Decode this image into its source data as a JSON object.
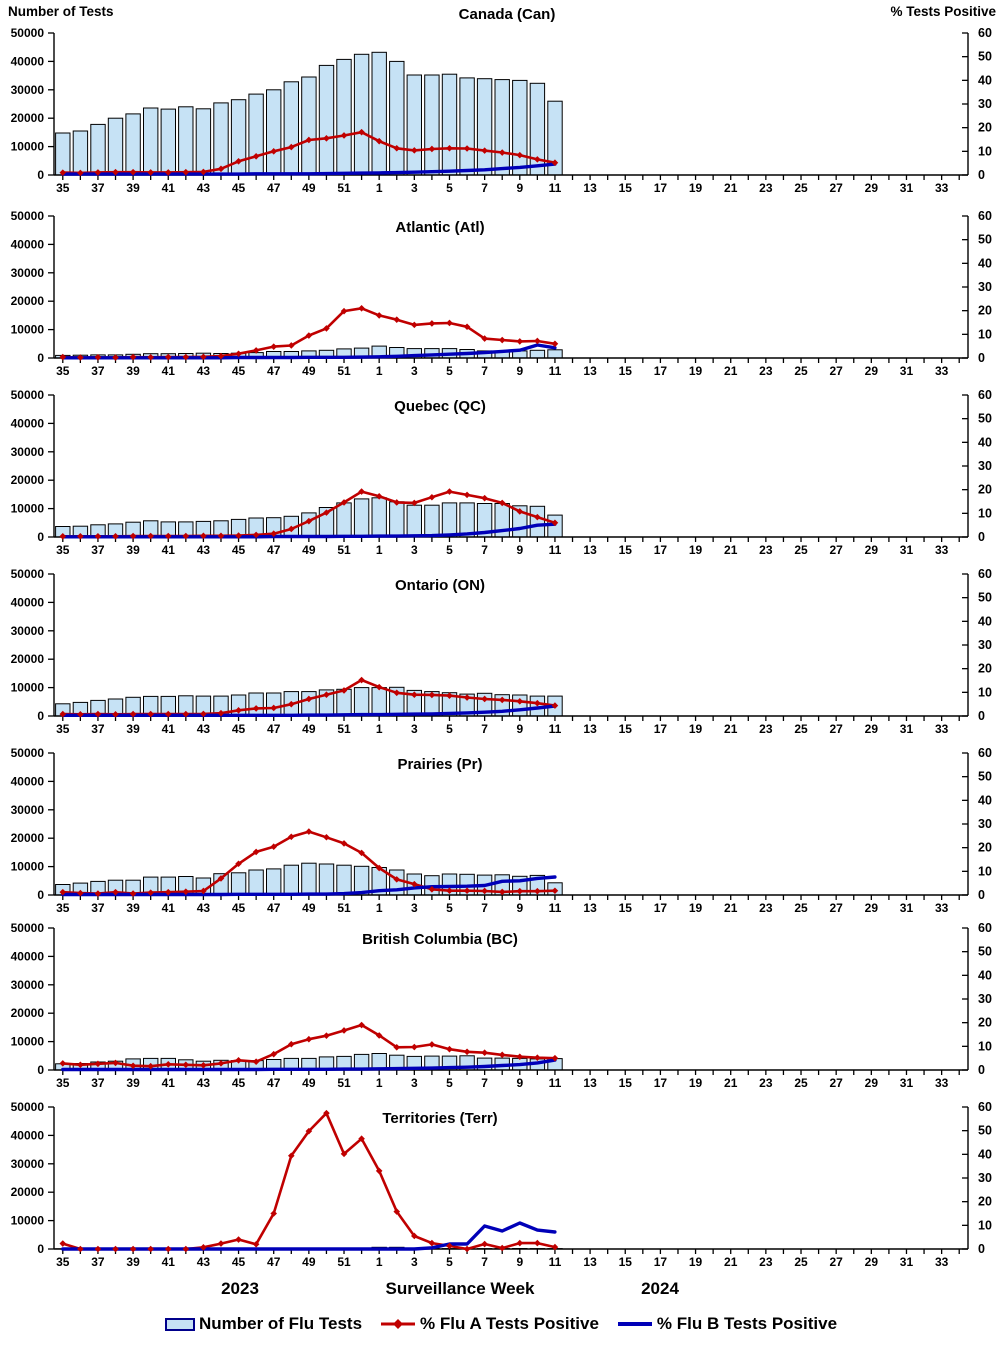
{
  "page": {
    "left_axis_label": "Number of Tests",
    "right_axis_label": "% Tests Positive",
    "x_axis": {
      "year_left": "2023",
      "title": "Surveillance Week",
      "year_right": "2024"
    },
    "legend": {
      "tests_label": "Number of Flu Tests",
      "flu_a_label": "% Flu A Tests Positive",
      "flu_b_label": "% Flu B Tests Positive"
    },
    "colors": {
      "bar_fill": "#C6E2F5",
      "bar_stroke": "#000000",
      "flu_a": "#C00000",
      "flu_b": "#0000B8",
      "axis": "#000000"
    }
  },
  "chart_data": {
    "type": "bar",
    "subtype": "combo-small-multiples",
    "x_axis_weeks": [
      "35",
      "36",
      "37",
      "38",
      "39",
      "40",
      "41",
      "42",
      "43",
      "44",
      "45",
      "46",
      "47",
      "48",
      "49",
      "50",
      "51",
      "52",
      "1",
      "2",
      "3",
      "4",
      "5",
      "6",
      "7",
      "8",
      "9",
      "10",
      "11",
      "12",
      "13",
      "14",
      "15",
      "16",
      "17",
      "18",
      "19",
      "20",
      "21",
      "22",
      "23",
      "24",
      "25",
      "26",
      "27",
      "28",
      "29",
      "30",
      "31",
      "32",
      "33",
      "34"
    ],
    "x_tick_label_every": 2,
    "data_weeks": [
      "35",
      "36",
      "37",
      "38",
      "39",
      "40",
      "41",
      "42",
      "43",
      "44",
      "45",
      "46",
      "47",
      "48",
      "49",
      "50",
      "51",
      "52",
      "1",
      "2",
      "3",
      "4",
      "5",
      "6",
      "7",
      "8",
      "9",
      "10",
      "11"
    ],
    "ylim_left": [
      0,
      50000
    ],
    "yticks_left": [
      0,
      10000,
      20000,
      30000,
      40000,
      50000
    ],
    "ylim_right": [
      0,
      60
    ],
    "yticks_right": [
      0,
      10,
      20,
      30,
      40,
      50,
      60
    ],
    "grid": false,
    "legend_position": "bottom",
    "panels": [
      {
        "title": "Canada (Can)",
        "region": "can",
        "bars": [
          14800,
          15500,
          17800,
          20000,
          21500,
          23600,
          23200,
          24000,
          23300,
          25400,
          26500,
          28500,
          30000,
          32800,
          34500,
          38600,
          40700,
          42500,
          43200,
          40000,
          35200,
          35200,
          35500,
          34200,
          33900,
          33600,
          33300,
          32300,
          26000
        ],
        "flu_a_pct": [
          1.0,
          0.9,
          1.1,
          1.2,
          1.2,
          1.1,
          1.1,
          1.2,
          1.3,
          2.6,
          5.8,
          7.9,
          10.0,
          11.8,
          14.8,
          15.5,
          16.7,
          18.1,
          14.3,
          11.3,
          10.4,
          11.0,
          11.3,
          11.2,
          10.3,
          9.5,
          8.4,
          6.6,
          5.2
        ],
        "flu_b_pct": [
          0.4,
          0.4,
          0.4,
          0.4,
          0.4,
          0.4,
          0.4,
          0.4,
          0.4,
          0.4,
          0.4,
          0.5,
          0.5,
          0.5,
          0.5,
          0.6,
          0.7,
          0.8,
          0.9,
          1.0,
          1.2,
          1.4,
          1.6,
          1.9,
          2.2,
          2.7,
          3.2,
          3.9,
          4.6
        ]
      },
      {
        "title": "Atlantic (Atl)",
        "region": "atl",
        "bars": [
          900,
          1000,
          1100,
          1100,
          1300,
          1500,
          1500,
          1600,
          1700,
          1600,
          1700,
          1900,
          2300,
          2300,
          2500,
          2700,
          3200,
          3500,
          4200,
          3700,
          3300,
          3300,
          3300,
          3000,
          2500,
          2200,
          2500,
          2700,
          2900
        ],
        "flu_a_pct": [
          0.4,
          0.2,
          0.3,
          0.2,
          0.4,
          0.3,
          0.4,
          0.4,
          0.5,
          0.8,
          1.8,
          3.2,
          4.8,
          5.3,
          9.5,
          12.5,
          19.8,
          21.0,
          18.0,
          16.2,
          14.0,
          14.6,
          14.8,
          13.2,
          8.2,
          7.6,
          7.0,
          7.2,
          6.0
        ],
        "flu_b_pct": [
          0.1,
          0.1,
          0.1,
          0.1,
          0.1,
          0.1,
          0.1,
          0.1,
          0.1,
          0.1,
          0.2,
          0.2,
          0.2,
          0.2,
          0.3,
          0.3,
          0.3,
          0.4,
          0.5,
          0.7,
          1.0,
          1.3,
          1.6,
          1.9,
          2.3,
          2.8,
          3.3,
          5.5,
          4.3
        ]
      },
      {
        "title": "Quebec (QC)",
        "region": "qc",
        "bars": [
          3700,
          3800,
          4300,
          4600,
          5200,
          5700,
          5300,
          5300,
          5500,
          5700,
          6200,
          6700,
          6800,
          7300,
          8500,
          10400,
          12000,
          13400,
          13800,
          12400,
          11200,
          11200,
          12000,
          12000,
          11800,
          11800,
          11000,
          10800,
          7700
        ],
        "flu_a_pct": [
          0.3,
          0.3,
          0.3,
          0.3,
          0.4,
          0.4,
          0.4,
          0.4,
          0.5,
          0.5,
          0.6,
          0.9,
          1.4,
          3.4,
          6.7,
          10.3,
          14.6,
          19.2,
          17.2,
          14.6,
          14.4,
          16.8,
          19.2,
          17.8,
          16.4,
          14.4,
          10.8,
          8.4,
          6.0
        ],
        "flu_b_pct": [
          0.1,
          0.1,
          0.1,
          0.1,
          0.1,
          0.1,
          0.1,
          0.1,
          0.1,
          0.1,
          0.1,
          0.1,
          0.2,
          0.2,
          0.2,
          0.2,
          0.3,
          0.3,
          0.4,
          0.4,
          0.5,
          0.6,
          0.9,
          1.3,
          1.9,
          2.7,
          3.6,
          5.0,
          5.4
        ]
      },
      {
        "title": "Ontario (ON)",
        "region": "on",
        "bars": [
          4300,
          4800,
          5500,
          6000,
          6600,
          6900,
          6900,
          7100,
          7000,
          7000,
          7400,
          8100,
          8100,
          8600,
          8600,
          9200,
          9400,
          10000,
          10000,
          10100,
          9000,
          8600,
          8200,
          7700,
          8000,
          7500,
          7400,
          7000,
          7000
        ],
        "flu_a_pct": [
          0.8,
          0.7,
          0.8,
          0.7,
          0.8,
          0.8,
          0.8,
          0.8,
          0.9,
          1.2,
          2.4,
          3.2,
          3.4,
          5.0,
          7.2,
          9.0,
          10.8,
          15.2,
          12.2,
          9.8,
          9.0,
          8.9,
          8.6,
          7.8,
          7.2,
          6.8,
          6.2,
          5.4,
          4.4
        ],
        "flu_b_pct": [
          0.3,
          0.3,
          0.3,
          0.3,
          0.3,
          0.3,
          0.3,
          0.3,
          0.3,
          0.3,
          0.3,
          0.3,
          0.3,
          0.3,
          0.4,
          0.4,
          0.5,
          0.6,
          0.6,
          0.7,
          0.8,
          0.9,
          1.1,
          1.3,
          1.6,
          2.0,
          2.6,
          3.4,
          4.2
        ]
      },
      {
        "title": "Prairies (Pr)",
        "region": "pr",
        "bars": [
          3700,
          4200,
          4800,
          5200,
          5200,
          6300,
          6300,
          6500,
          6000,
          7500,
          7800,
          8800,
          9200,
          10500,
          11200,
          10900,
          10500,
          10100,
          9700,
          8800,
          7400,
          6800,
          7400,
          7300,
          7000,
          7100,
          6600,
          6900,
          4300
        ],
        "flu_a_pct": [
          1.2,
          0.8,
          0.6,
          1.2,
          0.6,
          1.0,
          1.2,
          1.4,
          1.7,
          7.0,
          13.2,
          18.2,
          20.4,
          24.6,
          26.8,
          24.4,
          21.8,
          17.8,
          11.4,
          6.6,
          4.6,
          2.4,
          1.8,
          1.8,
          1.7,
          1.3,
          1.6,
          1.6,
          1.8
        ],
        "flu_b_pct": [
          0.2,
          0.2,
          0.2,
          0.2,
          0.2,
          0.2,
          0.2,
          0.2,
          0.2,
          0.2,
          0.3,
          0.3,
          0.3,
          0.3,
          0.4,
          0.4,
          0.6,
          1.0,
          1.8,
          2.2,
          3.0,
          3.5,
          3.6,
          3.7,
          4.0,
          5.8,
          6.0,
          7.0,
          7.6
        ]
      },
      {
        "title": "British Columbia (BC)",
        "region": "bc",
        "bars": [
          2200,
          2300,
          2800,
          3100,
          3900,
          4100,
          4100,
          3600,
          3100,
          3400,
          3300,
          3300,
          3700,
          4100,
          4100,
          4600,
          4800,
          5500,
          5800,
          5200,
          4800,
          4900,
          4900,
          5000,
          4200,
          4200,
          4100,
          3900,
          4000
        ],
        "flu_a_pct": [
          2.8,
          2.2,
          2.6,
          3.0,
          1.8,
          1.6,
          2.4,
          2.2,
          2.0,
          2.8,
          4.1,
          3.5,
          6.7,
          10.9,
          13.0,
          14.5,
          16.7,
          19.0,
          14.6,
          9.6,
          9.7,
          10.8,
          8.8,
          7.7,
          7.3,
          6.4,
          5.6,
          5.2,
          5.0
        ],
        "flu_b_pct": [
          0.2,
          0.2,
          0.2,
          0.2,
          0.2,
          0.2,
          0.2,
          0.2,
          0.2,
          0.2,
          0.2,
          0.2,
          0.3,
          0.3,
          0.3,
          0.3,
          0.4,
          0.4,
          0.5,
          0.6,
          0.7,
          0.8,
          1.0,
          1.2,
          1.5,
          1.9,
          2.3,
          3.0,
          4.2
        ]
      },
      {
        "title": "Territories (Terr)",
        "region": "terr",
        "bars": [
          60,
          40,
          50,
          40,
          60,
          50,
          40,
          50,
          60,
          80,
          90,
          70,
          120,
          200,
          260,
          300,
          280,
          260,
          600,
          600,
          300,
          200,
          150,
          120,
          150,
          130,
          160,
          150,
          140
        ],
        "flu_a_pct": [
          2.3,
          0,
          0,
          0,
          0,
          0,
          0,
          0,
          0.7,
          2.3,
          4.0,
          2.0,
          15.0,
          39.4,
          49.8,
          57.4,
          40.2,
          46.6,
          33.0,
          15.8,
          5.5,
          2.5,
          1.3,
          0,
          2.1,
          0.4,
          2.5,
          2.5,
          0.8
        ],
        "flu_b_pct": [
          0,
          0,
          0,
          0,
          0,
          0,
          0,
          0,
          0,
          0,
          0,
          0,
          0,
          0,
          0,
          0,
          0,
          0,
          0,
          0,
          0,
          0.5,
          2.1,
          2.1,
          9.7,
          7.6,
          11.0,
          8.0,
          7.2
        ]
      }
    ]
  }
}
